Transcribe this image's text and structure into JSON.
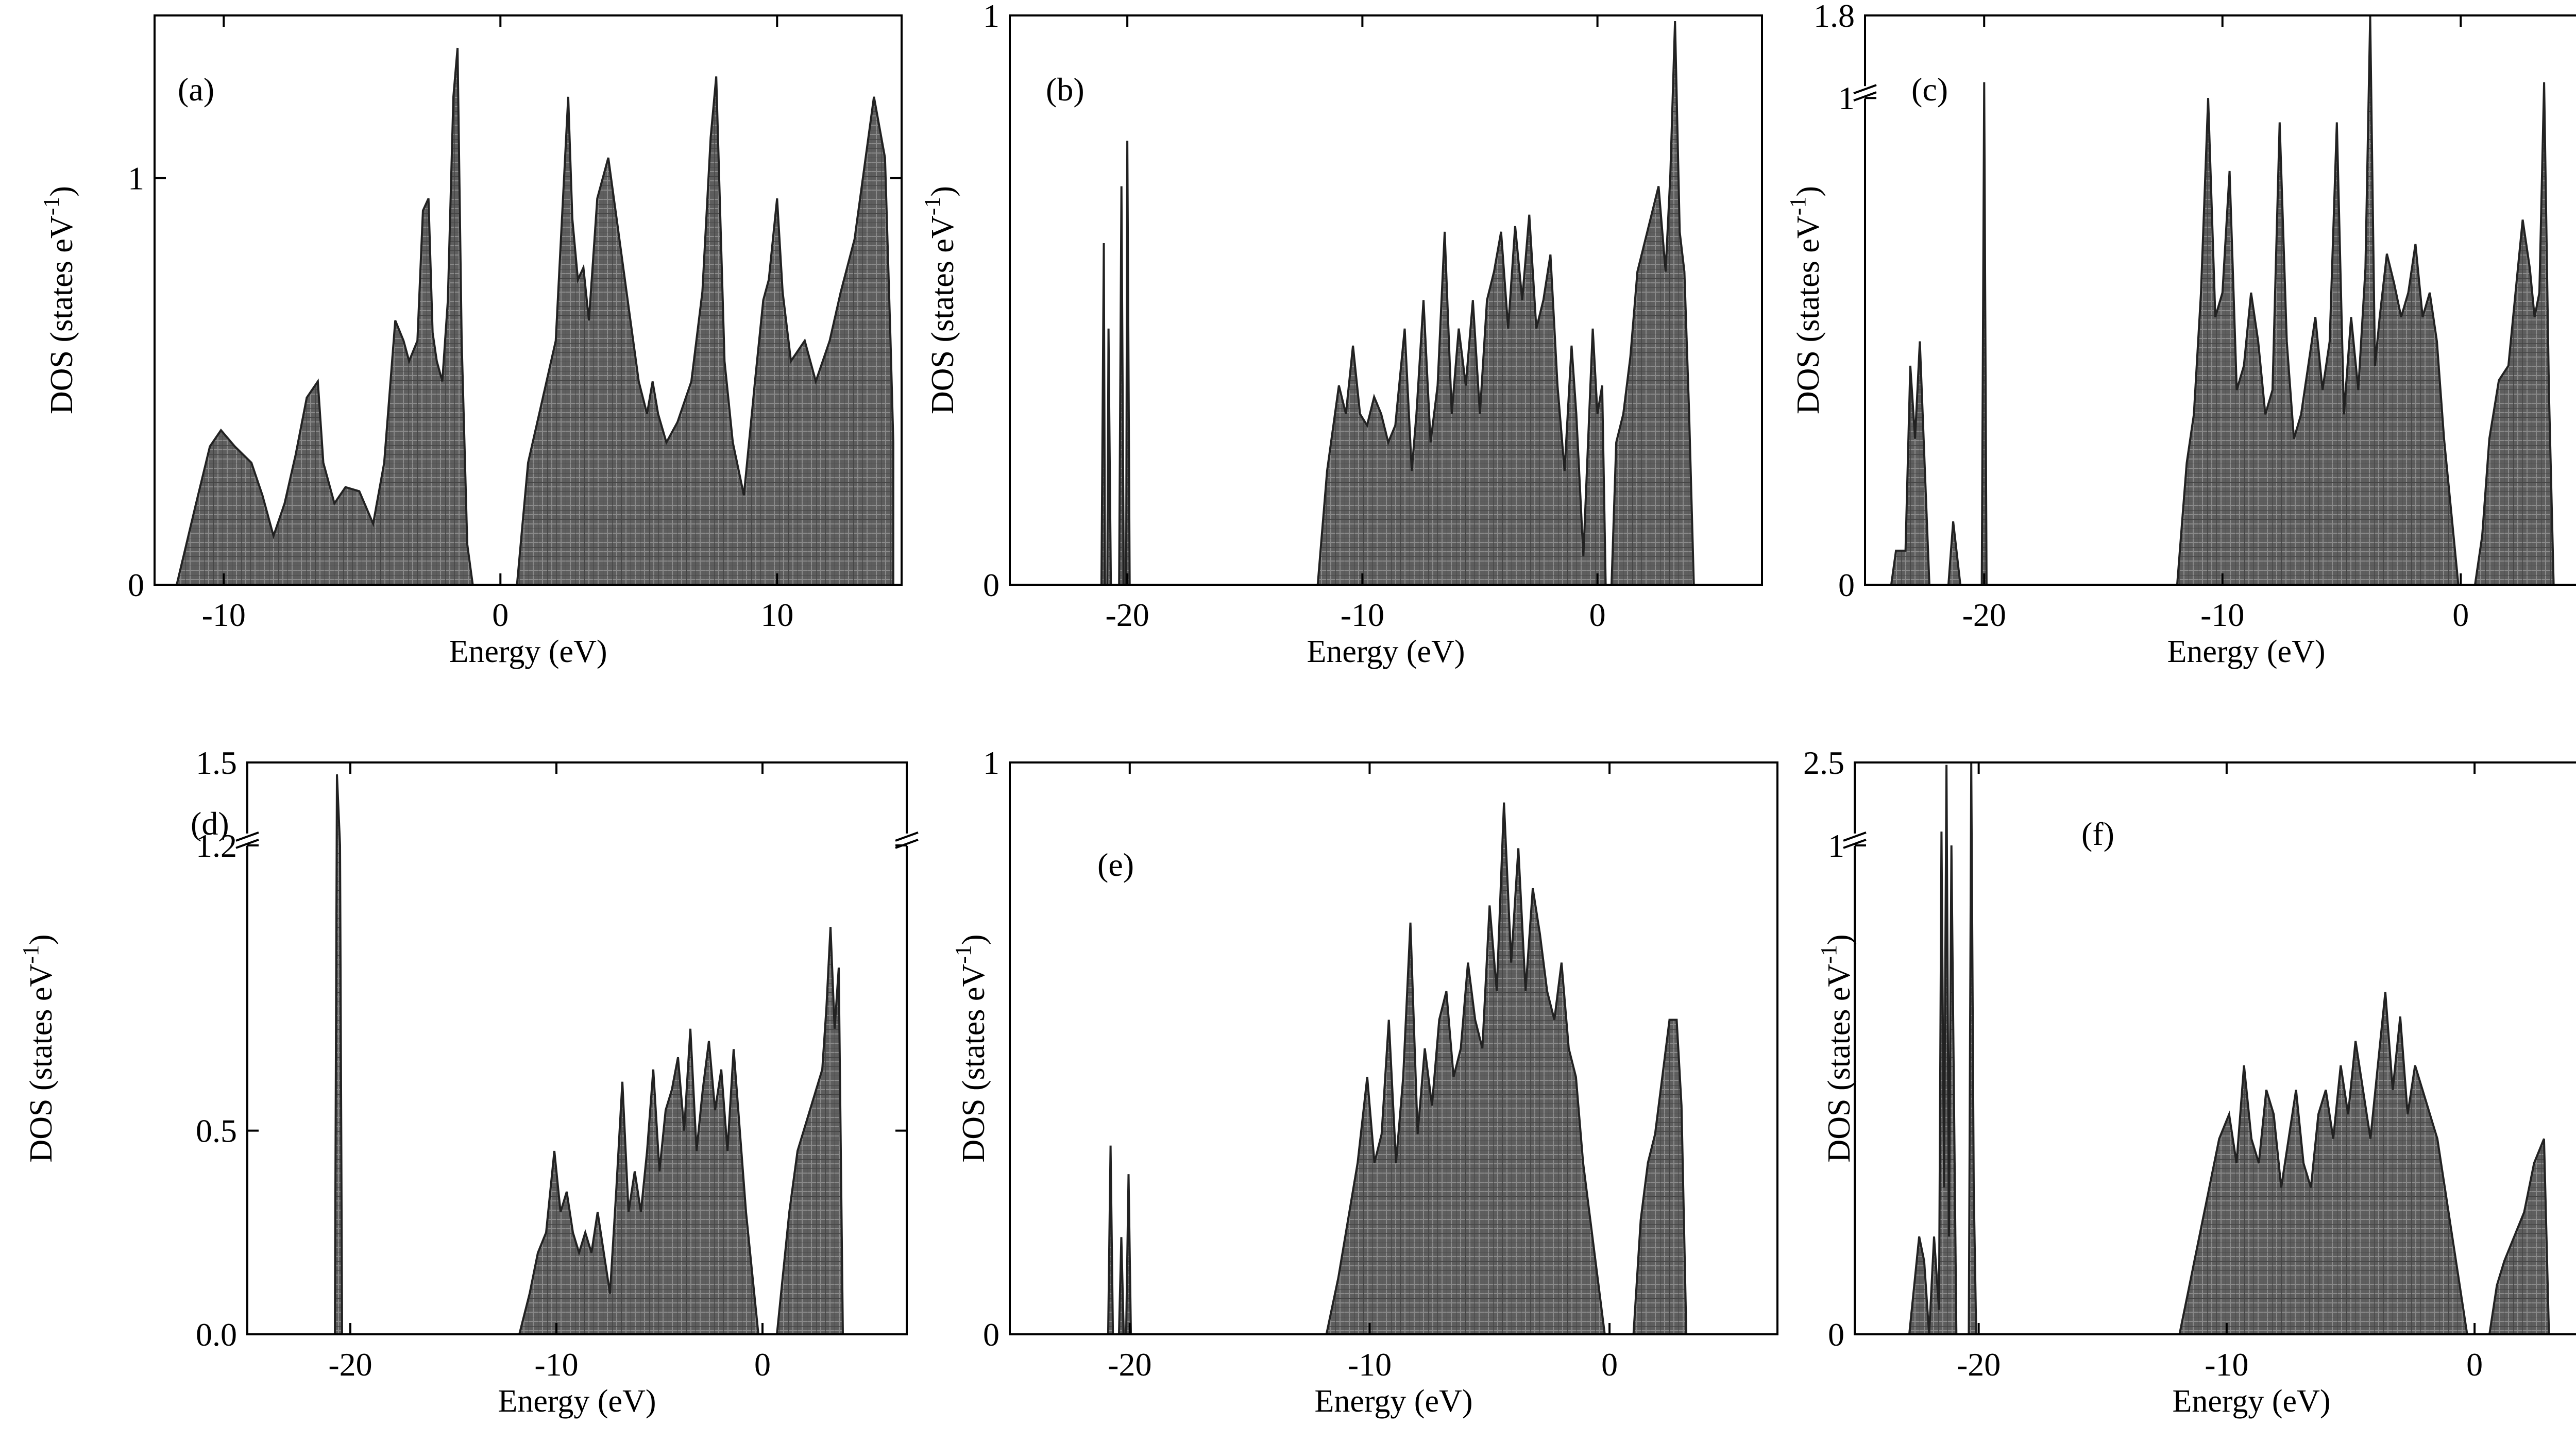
{
  "chart_data": [
    {
      "type": "area",
      "panel_label": "(a)",
      "xlabel": "Energy (eV)",
      "ylabel": "DOS (states eV",
      "ylabel_sup": "-1",
      "ylabel_end": ")",
      "xlim": [
        -12.5,
        14.5
      ],
      "ylim": [
        0,
        1.4
      ],
      "xticks": [
        {
          "v": -10,
          "label": "-10"
        },
        {
          "v": 0,
          "label": "0"
        },
        {
          "v": 10,
          "label": "10"
        }
      ],
      "yticks": [
        {
          "v": 0,
          "label": "0"
        },
        {
          "v": 1,
          "label": "1"
        }
      ],
      "series": [
        {
          "x": [
            -11.7,
            -11.0,
            -10.5,
            -10.1,
            -9.6,
            -9.0,
            -8.6,
            -8.2,
            -7.8,
            -7.4,
            -7.0,
            -6.6,
            -6.4,
            -6.0,
            -5.6,
            -5.1,
            -4.6,
            -4.2,
            -3.8,
            -3.5,
            -3.3,
            -3.0,
            -2.8,
            -2.6,
            -2.45,
            -2.3,
            -2.1,
            -1.9,
            -1.7,
            -1.55,
            -1.4,
            -1.2,
            -1.0,
            -0.9,
            0.6,
            1.0,
            1.5,
            2.0,
            2.3,
            2.45,
            2.6,
            2.8,
            3.0,
            3.2,
            3.5,
            3.9,
            4.2,
            4.6,
            5.0,
            5.3,
            5.5,
            5.7,
            6.0,
            6.4,
            6.9,
            7.3,
            7.6,
            7.8,
            7.95,
            8.1,
            8.4,
            8.8,
            9.2,
            9.5,
            9.7,
            10.0,
            10.2,
            10.5,
            11.0,
            11.4,
            11.9,
            12.3,
            12.8,
            13.2,
            13.5,
            13.9,
            14.1,
            14.2
          ],
          "y": [
            0.0,
            0.2,
            0.34,
            0.38,
            0.34,
            0.3,
            0.22,
            0.12,
            0.2,
            0.32,
            0.46,
            0.5,
            0.3,
            0.2,
            0.24,
            0.23,
            0.15,
            0.3,
            0.65,
            0.6,
            0.55,
            0.6,
            0.92,
            0.95,
            0.62,
            0.55,
            0.5,
            0.7,
            1.2,
            1.32,
            0.6,
            0.1,
            0.0,
            0.0,
            0.0,
            0.3,
            0.45,
            0.6,
            1.0,
            1.2,
            0.9,
            0.75,
            0.78,
            0.65,
            0.95,
            1.05,
            0.9,
            0.7,
            0.5,
            0.42,
            0.5,
            0.42,
            0.35,
            0.4,
            0.5,
            0.72,
            1.1,
            1.25,
            0.9,
            0.55,
            0.35,
            0.22,
            0.5,
            0.7,
            0.75,
            0.95,
            0.72,
            0.55,
            0.6,
            0.5,
            0.6,
            0.72,
            0.85,
            1.05,
            1.2,
            1.05,
            0.6,
            0.35
          ]
        }
      ]
    },
    {
      "type": "area",
      "panel_label": "(b)",
      "xlabel": "Energy (eV)",
      "ylabel": "DOS (states eV",
      "ylabel_sup": "-1",
      "ylabel_end": ")",
      "xlim": [
        -25,
        7
      ],
      "ylim": [
        0,
        1.0
      ],
      "xticks": [
        {
          "v": -20,
          "label": "-20"
        },
        {
          "v": -10,
          "label": "-10"
        },
        {
          "v": 0,
          "label": "0"
        }
      ],
      "yticks": [
        {
          "v": 0,
          "label": "0"
        },
        {
          "v": 1,
          "label": "1"
        }
      ],
      "series": [
        {
          "x": [
            -21.1,
            -21.0,
            -20.95,
            -20.85,
            -20.8,
            -20.7,
            -20.35,
            -20.25,
            -20.15,
            -20.05,
            -20.0,
            -19.9,
            -19.8,
            -11.9,
            -11.5,
            -11.0,
            -10.7,
            -10.4,
            -10.1,
            -9.8,
            -9.5,
            -9.2,
            -8.9,
            -8.6,
            -8.2,
            -7.9,
            -7.7,
            -7.4,
            -7.1,
            -6.8,
            -6.5,
            -6.2,
            -5.9,
            -5.6,
            -5.3,
            -5.0,
            -4.7,
            -4.4,
            -4.1,
            -3.8,
            -3.5,
            -3.2,
            -2.9,
            -2.6,
            -2.3,
            -2.0,
            -1.7,
            -1.4,
            -1.1,
            -0.9,
            -0.6,
            -0.4,
            -0.2,
            0.0,
            0.2,
            0.35,
            0.6,
            0.8,
            1.1,
            1.4,
            1.7,
            2.0,
            2.3,
            2.6,
            2.9,
            3.1,
            3.3,
            3.5,
            3.7,
            3.9,
            4.1
          ],
          "y": [
            0.0,
            0.6,
            0.0,
            0.0,
            0.45,
            0.0,
            0.0,
            0.7,
            0.0,
            0.0,
            0.78,
            0.0,
            0.0,
            0.0,
            0.2,
            0.35,
            0.3,
            0.42,
            0.3,
            0.28,
            0.33,
            0.3,
            0.25,
            0.28,
            0.45,
            0.2,
            0.3,
            0.5,
            0.25,
            0.35,
            0.62,
            0.3,
            0.45,
            0.35,
            0.5,
            0.3,
            0.5,
            0.55,
            0.62,
            0.45,
            0.63,
            0.5,
            0.65,
            0.45,
            0.5,
            0.58,
            0.35,
            0.2,
            0.42,
            0.3,
            0.05,
            0.25,
            0.45,
            0.3,
            0.35,
            0.0,
            0.0,
            0.25,
            0.3,
            0.4,
            0.55,
            0.6,
            0.65,
            0.7,
            0.55,
            0.72,
            0.99,
            0.62,
            0.55,
            0.3,
            0.0
          ]
        }
      ]
    },
    {
      "type": "area",
      "panel_label": "(c)",
      "xlabel": "Energy (eV)",
      "ylabel": "DOS (states eV",
      "ylabel_sup": "-1",
      "ylabel_end": ")",
      "xlim": [
        -25,
        7
      ],
      "ylim": [
        0,
        1.8
      ],
      "axis_break": [
        1.0,
        1.8
      ],
      "xticks": [
        {
          "v": -20,
          "label": "-20"
        },
        {
          "v": -10,
          "label": "-10"
        },
        {
          "v": 0,
          "label": "0"
        }
      ],
      "yticks": [
        {
          "v": 0,
          "label": "0"
        },
        {
          "v": 1,
          "label": "1"
        },
        {
          "v": 1.8,
          "label": "1.8"
        }
      ],
      "series": [
        {
          "x": [
            -23.9,
            -23.7,
            -23.3,
            -23.1,
            -22.9,
            -22.7,
            -22.5,
            -22.3,
            -21.5,
            -21.3,
            -21.0,
            -20.1,
            -20.0,
            -19.9,
            -11.9,
            -11.5,
            -11.2,
            -10.9,
            -10.6,
            -10.3,
            -10.0,
            -9.7,
            -9.4,
            -9.1,
            -8.8,
            -8.5,
            -8.2,
            -7.9,
            -7.6,
            -7.3,
            -7.0,
            -6.7,
            -6.4,
            -6.1,
            -5.8,
            -5.5,
            -5.2,
            -4.9,
            -4.6,
            -4.3,
            -4.0,
            -3.8,
            -3.6,
            -3.4,
            -3.1,
            -2.8,
            -2.5,
            -2.2,
            -1.9,
            -1.6,
            -1.3,
            -1.0,
            -0.7,
            -0.4,
            -0.1,
            0.6,
            0.9,
            1.2,
            1.6,
            2.0,
            2.3,
            2.6,
            2.9,
            3.1,
            3.3,
            3.5,
            3.7,
            3.9
          ],
          "y": [
            0.0,
            0.07,
            0.07,
            0.45,
            0.3,
            0.5,
            0.25,
            0.0,
            0.0,
            0.13,
            0.0,
            0.0,
            1.05,
            0.0,
            0.0,
            0.25,
            0.35,
            0.6,
            1.0,
            0.55,
            0.6,
            0.85,
            0.4,
            0.45,
            0.6,
            0.5,
            0.35,
            0.4,
            0.95,
            0.5,
            0.3,
            0.35,
            0.45,
            0.55,
            0.4,
            0.5,
            0.95,
            0.35,
            0.55,
            0.4,
            0.65,
            1.85,
            0.45,
            0.55,
            0.68,
            0.62,
            0.55,
            0.6,
            0.7,
            0.55,
            0.6,
            0.5,
            0.3,
            0.15,
            0.0,
            0.0,
            0.1,
            0.3,
            0.42,
            0.45,
            0.6,
            0.75,
            0.65,
            0.55,
            0.6,
            1.05,
            0.4,
            0.0
          ]
        }
      ]
    },
    {
      "type": "area",
      "panel_label": "(d)",
      "xlabel": "Energy (eV)",
      "ylabel": "DOS (states eV",
      "ylabel_sup": "-1",
      "ylabel_end": ")",
      "xlim": [
        -25,
        7
      ],
      "ylim": [
        0,
        1.5
      ],
      "axis_break": [
        1.2,
        1.5
      ],
      "xticks": [
        {
          "v": -20,
          "label": "-20"
        },
        {
          "v": -10,
          "label": "-10"
        },
        {
          "v": 0,
          "label": "0"
        }
      ],
      "yticks": [
        {
          "v": 0,
          "label": "0.0"
        },
        {
          "v": 0.5,
          "label": "0.5"
        },
        {
          "v": 1.2,
          "label": "1.2"
        },
        {
          "v": 1.5,
          "label": "1.5"
        }
      ],
      "series": [
        {
          "x": [
            -20.75,
            -20.65,
            -20.5,
            -20.4,
            -11.8,
            -11.3,
            -10.9,
            -10.5,
            -10.1,
            -9.8,
            -9.5,
            -9.2,
            -8.9,
            -8.6,
            -8.3,
            -8.0,
            -7.7,
            -7.4,
            -7.1,
            -6.8,
            -6.5,
            -6.2,
            -5.9,
            -5.6,
            -5.3,
            -5.0,
            -4.7,
            -4.4,
            -4.1,
            -3.8,
            -3.5,
            -3.2,
            -2.9,
            -2.6,
            -2.3,
            -2.0,
            -1.7,
            -1.4,
            -1.1,
            -0.8,
            -0.5,
            -0.2,
            0.7,
            1.0,
            1.3,
            1.7,
            2.0,
            2.3,
            2.6,
            2.9,
            3.1,
            3.3,
            3.5,
            3.7,
            3.9
          ],
          "y": [
            0.0,
            1.45,
            1.2,
            0.0,
            0.0,
            0.1,
            0.2,
            0.25,
            0.45,
            0.3,
            0.35,
            0.25,
            0.2,
            0.25,
            0.2,
            0.3,
            0.2,
            0.1,
            0.35,
            0.62,
            0.3,
            0.4,
            0.3,
            0.45,
            0.65,
            0.4,
            0.55,
            0.6,
            0.68,
            0.5,
            0.75,
            0.45,
            0.6,
            0.72,
            0.55,
            0.65,
            0.45,
            0.7,
            0.5,
            0.3,
            0.15,
            0.0,
            0.0,
            0.15,
            0.3,
            0.45,
            0.5,
            0.55,
            0.6,
            0.65,
            0.8,
            1.0,
            0.75,
            0.9,
            0.0
          ]
        }
      ]
    },
    {
      "type": "area",
      "panel_label": "(e)",
      "xlabel": "Energy (eV)",
      "ylabel": "DOS (states eV",
      "ylabel_sup": "-1",
      "ylabel_end": ")",
      "xlim": [
        -25,
        7
      ],
      "ylim": [
        0,
        1.0
      ],
      "xticks": [
        {
          "v": -20,
          "label": "-20"
        },
        {
          "v": -10,
          "label": "-10"
        },
        {
          "v": 0,
          "label": "0"
        }
      ],
      "yticks": [
        {
          "v": 0,
          "label": "0"
        },
        {
          "v": 1,
          "label": "1"
        }
      ],
      "series": [
        {
          "x": [
            -20.9,
            -20.8,
            -20.7,
            -20.45,
            -20.35,
            -20.25,
            -20.15,
            -20.05,
            -19.95,
            -11.8,
            -11.3,
            -10.9,
            -10.5,
            -10.1,
            -9.8,
            -9.5,
            -9.2,
            -8.9,
            -8.6,
            -8.3,
            -8.0,
            -7.7,
            -7.4,
            -7.1,
            -6.8,
            -6.5,
            -6.2,
            -5.9,
            -5.6,
            -5.3,
            -5.0,
            -4.7,
            -4.4,
            -4.1,
            -3.8,
            -3.5,
            -3.2,
            -2.9,
            -2.6,
            -2.3,
            -2.0,
            -1.7,
            -1.4,
            -1.1,
            -0.8,
            -0.5,
            -0.2,
            1.0,
            1.3,
            1.6,
            1.9,
            2.2,
            2.5,
            2.8,
            3.0,
            3.2
          ],
          "y": [
            0.0,
            0.33,
            0.0,
            0.0,
            0.17,
            0.0,
            0.0,
            0.28,
            0.0,
            0.0,
            0.1,
            0.2,
            0.3,
            0.45,
            0.3,
            0.35,
            0.55,
            0.3,
            0.45,
            0.72,
            0.35,
            0.5,
            0.4,
            0.55,
            0.6,
            0.45,
            0.5,
            0.65,
            0.55,
            0.5,
            0.75,
            0.6,
            0.93,
            0.65,
            0.85,
            0.6,
            0.78,
            0.7,
            0.6,
            0.55,
            0.65,
            0.5,
            0.45,
            0.3,
            0.2,
            0.1,
            0.0,
            0.0,
            0.2,
            0.3,
            0.35,
            0.45,
            0.55,
            0.55,
            0.4,
            0.0
          ]
        }
      ]
    },
    {
      "type": "area",
      "panel_label": "(f)",
      "xlabel": "Energy (eV)",
      "ylabel": "DOS (states eV",
      "ylabel_sup": "-1",
      "ylabel_end": ")",
      "xlim": [
        -25,
        7
      ],
      "ylim": [
        0,
        2.5
      ],
      "axis_break": [
        1.0,
        2.5
      ],
      "xticks": [
        {
          "v": -20,
          "label": "-20"
        },
        {
          "v": -10,
          "label": "-10"
        },
        {
          "v": 0,
          "label": "0"
        }
      ],
      "yticks": [
        {
          "v": 0,
          "label": "0"
        },
        {
          "v": 1,
          "label": "1"
        },
        {
          "v": 2.5,
          "label": "2.5"
        }
      ],
      "series": [
        {
          "x": [
            -22.8,
            -22.6,
            -22.4,
            -22.2,
            -22.0,
            -21.8,
            -21.6,
            -21.5,
            -21.4,
            -21.3,
            -21.2,
            -21.1,
            -21.0,
            -20.9,
            -20.4,
            -20.3,
            -20.2,
            -20.1,
            -11.9,
            -11.5,
            -11.1,
            -10.7,
            -10.3,
            -9.9,
            -9.6,
            -9.3,
            -9.0,
            -8.7,
            -8.4,
            -8.1,
            -7.8,
            -7.5,
            -7.2,
            -6.9,
            -6.6,
            -6.3,
            -6.0,
            -5.7,
            -5.4,
            -5.1,
            -4.8,
            -4.5,
            -4.2,
            -3.9,
            -3.6,
            -3.3,
            -3.0,
            -2.7,
            -2.4,
            -2.1,
            -1.8,
            -1.5,
            -1.2,
            -0.9,
            -0.6,
            -0.3,
            0.6,
            0.9,
            1.2,
            1.6,
            2.0,
            2.4,
            2.8,
            3.0
          ],
          "y": [
            0.0,
            0.1,
            0.2,
            0.15,
            0.0,
            0.2,
            0.05,
            1.05,
            0.3,
            2.45,
            0.2,
            1.0,
            0.5,
            0.0,
            0.0,
            2.5,
            0.3,
            0.0,
            0.0,
            0.1,
            0.2,
            0.3,
            0.4,
            0.45,
            0.35,
            0.55,
            0.4,
            0.35,
            0.5,
            0.45,
            0.3,
            0.4,
            0.5,
            0.35,
            0.3,
            0.45,
            0.5,
            0.4,
            0.55,
            0.45,
            0.6,
            0.5,
            0.4,
            0.55,
            0.7,
            0.5,
            0.65,
            0.45,
            0.55,
            0.5,
            0.45,
            0.4,
            0.3,
            0.2,
            0.1,
            0.0,
            0.0,
            0.1,
            0.15,
            0.2,
            0.25,
            0.35,
            0.4,
            0.0
          ]
        }
      ]
    }
  ]
}
